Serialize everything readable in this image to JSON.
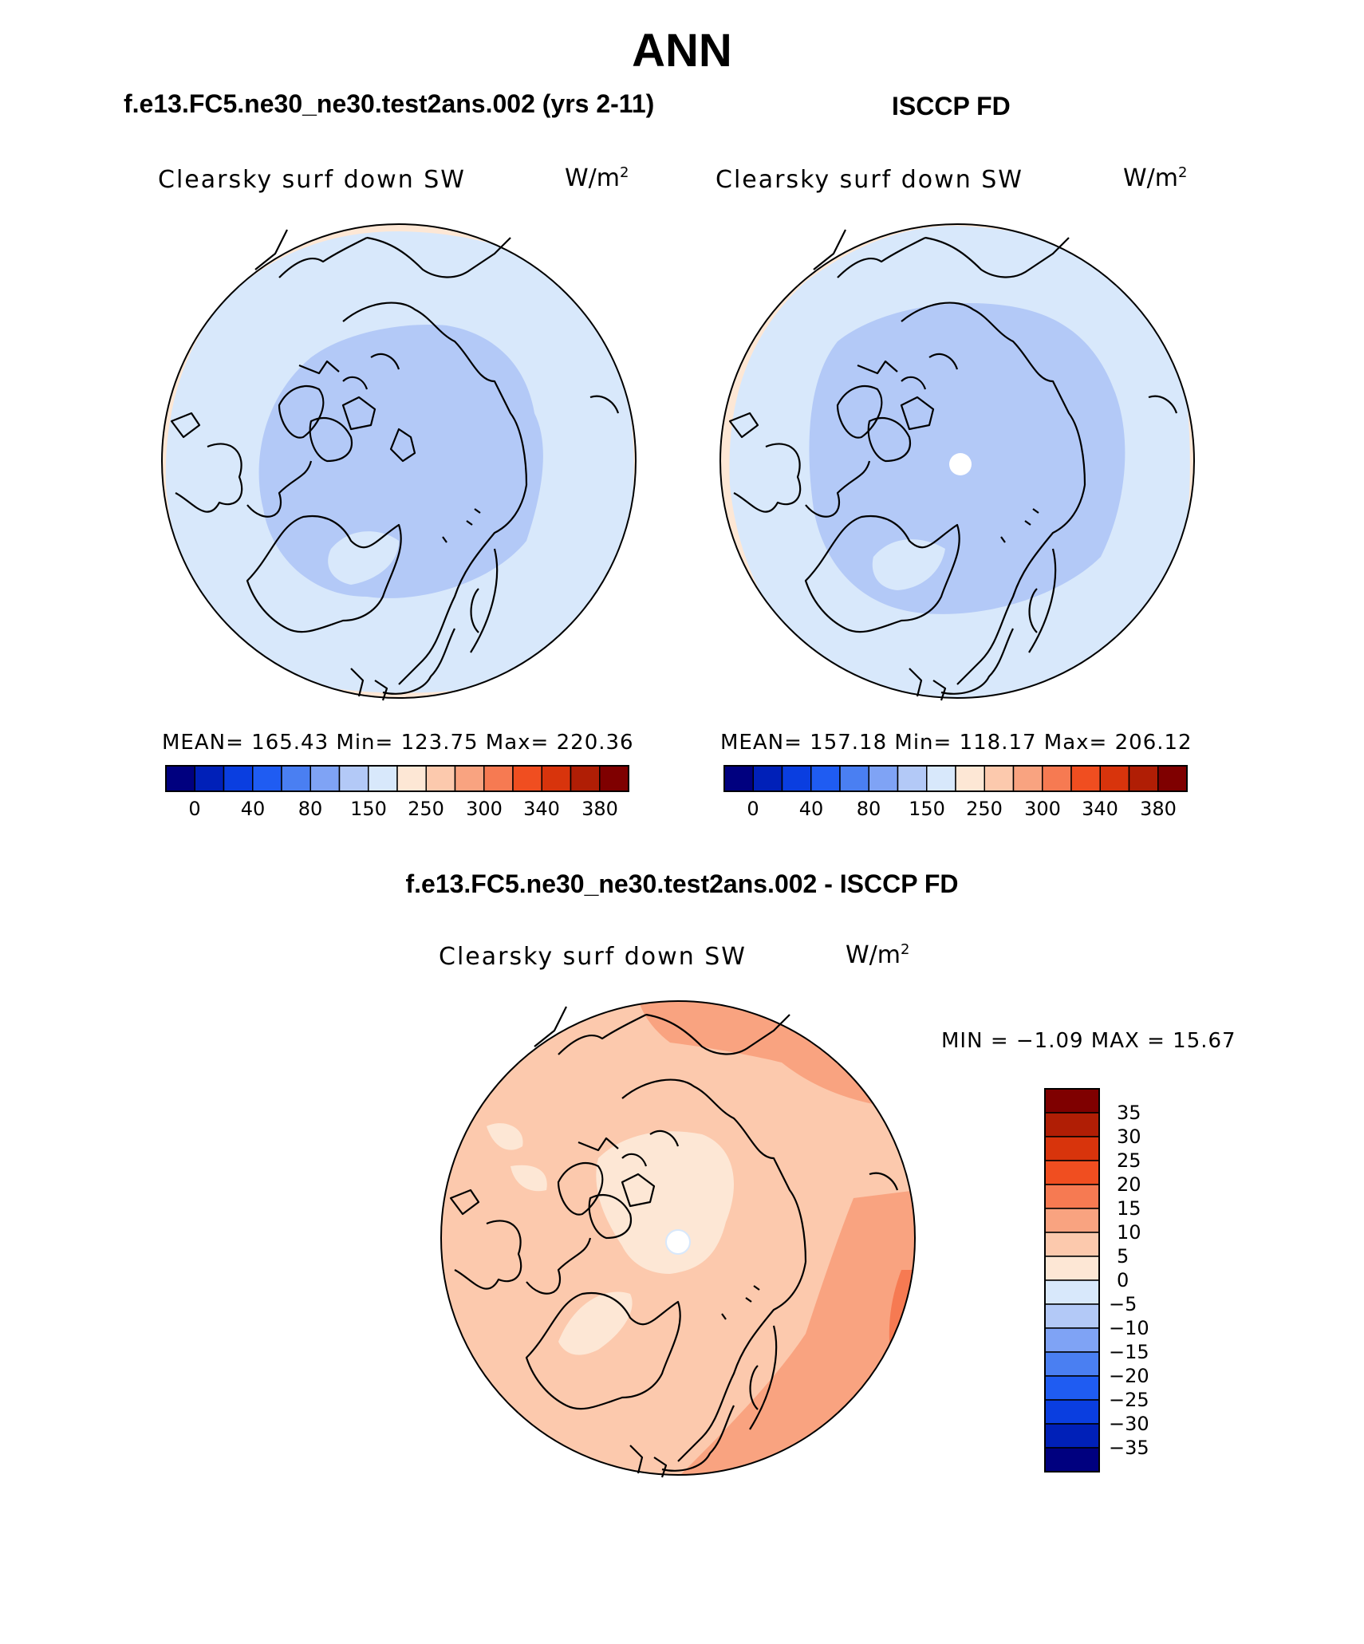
{
  "title": "ANN",
  "panels": [
    {
      "case_title": "f.e13.FC5.ne30_ne30.test2ans.002 (yrs 2-11)",
      "label": "Clearsky surf down SW",
      "units": "W/m",
      "units_sup": "2",
      "stats": "MEAN= 165.43   Min= 123.75   Max= 220.36"
    },
    {
      "case_title": "ISCCP FD",
      "label": "Clearsky surf down SW",
      "units": "W/m",
      "units_sup": "2",
      "stats": "MEAN= 157.18   Min= 118.17   Max= 206.12"
    }
  ],
  "abs_colorbar": {
    "colors": [
      "#00007f",
      "#0020b8",
      "#0a3ee0",
      "#1f5cf2",
      "#4a7ff2",
      "#7fa3f5",
      "#b3c9f7",
      "#d8e8fb",
      "#fde7d5",
      "#fcc9ad",
      "#f9a380",
      "#f67a52",
      "#f04e20",
      "#d8340c",
      "#b01e05",
      "#7f0000"
    ],
    "ticks": [
      "0",
      "40",
      "80",
      "150",
      "250",
      "300",
      "340",
      "380"
    ]
  },
  "diff": {
    "case_title": "f.e13.FC5.ne30_ne30.test2ans.002 - ISCCP FD",
    "label": "Clearsky surf down SW",
    "units": "W/m",
    "units_sup": "2",
    "minmax": "MIN =  −1.09 MAX =   15.67",
    "colorbar": {
      "colors": [
        "#7f0000",
        "#b01e05",
        "#d8340c",
        "#f04e20",
        "#f67a52",
        "#f9a380",
        "#fcc9ad",
        "#fde7d5",
        "#d8e8fb",
        "#b3c9f7",
        "#7fa3f5",
        "#4a7ff2",
        "#1f5cf2",
        "#0a3ee0",
        "#0020b8",
        "#00007f"
      ],
      "ticks": [
        "35",
        "30",
        "25",
        "20",
        "15",
        "10",
        "5",
        "0",
        "−5",
        "−10",
        "−15",
        "−20",
        "−25",
        "−30",
        "−35"
      ]
    }
  },
  "map_colors": {
    "light_blue": "#d8e8fb",
    "mid_blue": "#b3c9f7",
    "peach": "#fde7d5",
    "light_salmon": "#fcc9ad",
    "salmon": "#f9a380",
    "orange": "#f67a52",
    "missing": "#ffffff"
  }
}
